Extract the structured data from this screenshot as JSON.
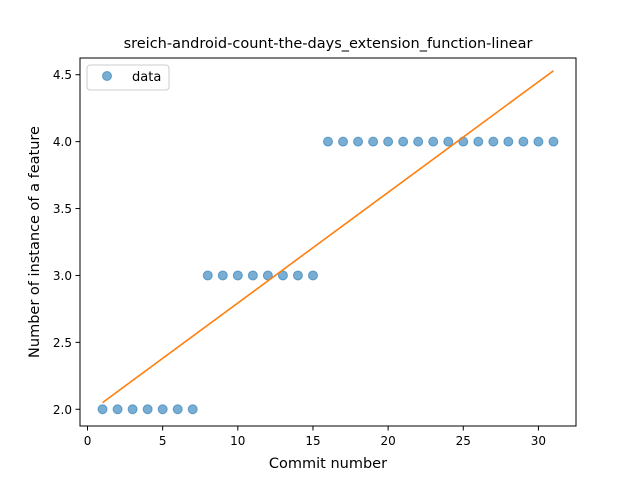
{
  "chart_data": {
    "type": "scatter",
    "title": "sreich-android-count-the-days_extension_function-linear",
    "xlabel": "Commit number",
    "ylabel": "Number of instance of a feature",
    "xlim": [
      -0.5,
      32.5
    ],
    "ylim": [
      1.875,
      4.625
    ],
    "xticks": [
      0,
      5,
      10,
      15,
      20,
      25,
      30
    ],
    "xtick_labels": [
      "0",
      "5",
      "10",
      "15",
      "20",
      "25",
      "30"
    ],
    "yticks": [
      2.0,
      2.5,
      3.0,
      3.5,
      4.0,
      4.5
    ],
    "ytick_labels": [
      "2.0",
      "2.5",
      "3.0",
      "3.5",
      "4.0",
      "4.5"
    ],
    "grid": false,
    "legend": {
      "position": "top-left",
      "entries": [
        "data"
      ]
    },
    "series": [
      {
        "name": "data",
        "kind": "scatter",
        "color": "#1f77b4",
        "x": [
          1,
          2,
          3,
          4,
          5,
          6,
          7,
          8,
          9,
          10,
          11,
          12,
          13,
          14,
          15,
          16,
          17,
          18,
          19,
          20,
          21,
          22,
          23,
          24,
          25,
          26,
          27,
          28,
          29,
          30,
          31
        ],
        "y": [
          2,
          2,
          2,
          2,
          2,
          2,
          2,
          3,
          3,
          3,
          3,
          3,
          3,
          3,
          3,
          4,
          4,
          4,
          4,
          4,
          4,
          4,
          4,
          4,
          4,
          4,
          4,
          4,
          4,
          4,
          4
        ]
      },
      {
        "kind": "line",
        "color": "#ff7f0e",
        "x": [
          1,
          31
        ],
        "y": [
          2.05,
          4.53
        ]
      }
    ]
  }
}
